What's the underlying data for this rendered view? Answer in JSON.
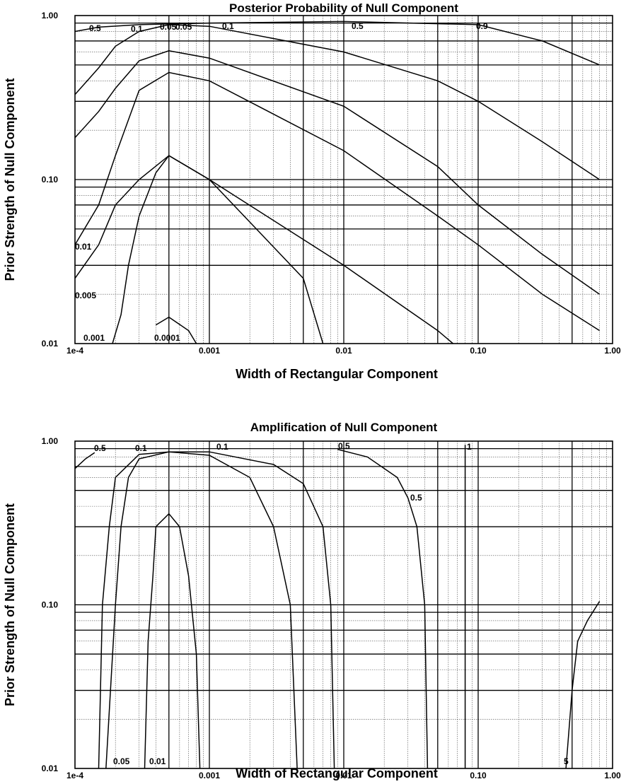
{
  "chart_data": [
    {
      "type": "line",
      "title": "Posterior Probability of Null Component",
      "xlabel": "Width of Rectangular Component",
      "ylabel": "Prior Strength of Null Component",
      "xscale": "log",
      "yscale": "log",
      "xlim": [
        0.0001,
        1.0
      ],
      "ylim": [
        0.01,
        1.0
      ],
      "grid": true,
      "x_ticks": [
        {
          "value": 0.0001,
          "label": "1e-4"
        },
        {
          "value": 0.001,
          "label": "0.001"
        },
        {
          "value": 0.01,
          "label": "0.01"
        },
        {
          "value": 0.1,
          "label": "0.10"
        },
        {
          "value": 1.0,
          "label": "1.00"
        }
      ],
      "y_ticks": [
        {
          "value": 0.01,
          "label": "0.01"
        },
        {
          "value": 0.1,
          "label": "0.10"
        },
        {
          "value": 1.0,
          "label": "1.00"
        }
      ],
      "series": [
        {
          "label": "0.5",
          "points": [
            [
              0.0001,
              0.8
            ],
            [
              0.00015,
              0.85
            ],
            [
              0.0003,
              0.88
            ],
            [
              0.001,
              0.9
            ],
            [
              0.01,
              0.92
            ],
            [
              0.1,
              0.88
            ],
            [
              0.3,
              0.7
            ],
            [
              0.8,
              0.5
            ]
          ]
        },
        {
          "label": "0.1",
          "points": [
            [
              0.0001,
              0.33
            ],
            [
              0.00015,
              0.48
            ],
            [
              0.0002,
              0.65
            ],
            [
              0.0003,
              0.8
            ],
            [
              0.0005,
              0.88
            ],
            [
              0.001,
              0.86
            ],
            [
              0.01,
              0.6
            ],
            [
              0.05,
              0.4
            ],
            [
              0.1,
              0.3
            ],
            [
              0.3,
              0.17
            ],
            [
              0.8,
              0.1
            ]
          ]
        },
        {
          "label": "0.05",
          "points": [
            [
              0.0001,
              0.18
            ],
            [
              0.00015,
              0.26
            ],
            [
              0.0002,
              0.36
            ],
            [
              0.0003,
              0.53
            ],
            [
              0.0005,
              0.61
            ],
            [
              0.001,
              0.55
            ],
            [
              0.01,
              0.28
            ],
            [
              0.05,
              0.12
            ],
            [
              0.1,
              0.07
            ],
            [
              0.3,
              0.035
            ],
            [
              0.8,
              0.02
            ]
          ]
        },
        {
          "label": "0.01",
          "points": [
            [
              0.0001,
              0.04
            ],
            [
              0.00015,
              0.07
            ],
            [
              0.0002,
              0.14
            ],
            [
              0.0003,
              0.35
            ],
            [
              0.0005,
              0.45
            ],
            [
              0.001,
              0.4
            ],
            [
              0.01,
              0.15
            ],
            [
              0.05,
              0.06
            ],
            [
              0.1,
              0.04
            ],
            [
              0.3,
              0.02
            ],
            [
              0.8,
              0.012
            ]
          ]
        },
        {
          "label": "0.005",
          "points": [
            [
              0.0001,
              0.025
            ],
            [
              0.00015,
              0.04
            ],
            [
              0.0002,
              0.07
            ],
            [
              0.0003,
              0.1
            ],
            [
              0.0005,
              0.14
            ],
            [
              0.001,
              0.1
            ],
            [
              0.01,
              0.03
            ],
            [
              0.05,
              0.012
            ],
            [
              0.065,
              0.01
            ]
          ]
        },
        {
          "label": "0.001",
          "points": [
            [
              0.00019,
              0.01
            ],
            [
              0.00022,
              0.015
            ],
            [
              0.00025,
              0.03
            ],
            [
              0.0003,
              0.06
            ],
            [
              0.0004,
              0.11
            ],
            [
              0.0005,
              0.14
            ],
            [
              0.001,
              0.1
            ],
            [
              0.005,
              0.025
            ],
            [
              0.007,
              0.01
            ]
          ]
        },
        {
          "label": "0.0001",
          "points": [
            [
              0.0004,
              0.013
            ],
            [
              0.0005,
              0.0145
            ],
            [
              0.0007,
              0.012
            ],
            [
              0.0008,
              0.01
            ]
          ]
        }
      ],
      "annotations": [
        "0.5",
        "0.1",
        "0.05",
        "0.05",
        "0.1",
        "0.5",
        "0.9",
        "0.01",
        "0.005",
        "0.001",
        "0.0001"
      ]
    },
    {
      "type": "line",
      "title": "Amplification of Null Component",
      "xlabel": "Width of Rectangular Component",
      "ylabel": "Prior Strength of Null Component",
      "xscale": "log",
      "yscale": "log",
      "xlim": [
        0.0001,
        1.0
      ],
      "ylim": [
        0.01,
        1.0
      ],
      "grid": true,
      "x_ticks": [
        {
          "value": 0.0001,
          "label": "1e-4"
        },
        {
          "value": 0.001,
          "label": "0.001"
        },
        {
          "value": 0.01,
          "label": "0.01"
        },
        {
          "value": 0.1,
          "label": "0.10"
        },
        {
          "value": 1.0,
          "label": "1.00"
        }
      ],
      "y_ticks": [
        {
          "value": 0.01,
          "label": "0.01"
        },
        {
          "value": 0.1,
          "label": "0.10"
        },
        {
          "value": 1.0,
          "label": "1.00"
        }
      ],
      "series": [
        {
          "label": "0.5",
          "points": [
            [
              0.0001,
              0.68
            ],
            [
              0.00012,
              0.78
            ],
            [
              0.00014,
              0.85
            ]
          ]
        },
        {
          "label": "0.05",
          "points": [
            [
              0.00015,
              0.01
            ],
            [
              0.00016,
              0.1
            ],
            [
              0.00018,
              0.3
            ],
            [
              0.0002,
              0.6
            ],
            [
              0.0003,
              0.83
            ],
            [
              0.0005,
              0.86
            ],
            [
              0.001,
              0.82
            ],
            [
              0.002,
              0.6
            ],
            [
              0.003,
              0.3
            ],
            [
              0.004,
              0.1
            ],
            [
              0.0045,
              0.01
            ]
          ]
        },
        {
          "label": "0.1",
          "points": [
            [
              0.00017,
              0.01
            ],
            [
              0.0002,
              0.1
            ],
            [
              0.00022,
              0.3
            ],
            [
              0.00025,
              0.6
            ],
            [
              0.0003,
              0.78
            ],
            [
              0.0005,
              0.86
            ],
            [
              0.001,
              0.86
            ],
            [
              0.003,
              0.72
            ],
            [
              0.005,
              0.55
            ],
            [
              0.007,
              0.3
            ],
            [
              0.008,
              0.1
            ],
            [
              0.0085,
              0.01
            ]
          ]
        },
        {
          "label": "0.01",
          "points": [
            [
              0.00033,
              0.01
            ],
            [
              0.00035,
              0.06
            ],
            [
              0.00038,
              0.15
            ],
            [
              0.0004,
              0.3
            ],
            [
              0.0005,
              0.36
            ],
            [
              0.0006,
              0.3
            ],
            [
              0.0007,
              0.15
            ],
            [
              0.0008,
              0.05
            ],
            [
              0.00085,
              0.01
            ]
          ]
        },
        {
          "label": "0.5",
          "points": [
            [
              0.009,
              0.89
            ],
            [
              0.015,
              0.8
            ],
            [
              0.025,
              0.6
            ],
            [
              0.03,
              0.45
            ],
            [
              0.035,
              0.3
            ],
            [
              0.04,
              0.1
            ],
            [
              0.042,
              0.01
            ]
          ]
        },
        {
          "label": "1",
          "points": [
            [
              0.08,
              0.01
            ],
            [
              0.08,
              0.95
            ]
          ]
        },
        {
          "label": "5",
          "points": [
            [
              0.45,
              0.01
            ],
            [
              0.5,
              0.03
            ],
            [
              0.55,
              0.06
            ],
            [
              0.65,
              0.08
            ],
            [
              0.8,
              0.105
            ]
          ]
        }
      ],
      "annotations": [
        "0.5",
        "0.1",
        "0.1",
        "0.5",
        "1",
        "0.5",
        "0.05",
        "0.01",
        "5"
      ]
    }
  ]
}
